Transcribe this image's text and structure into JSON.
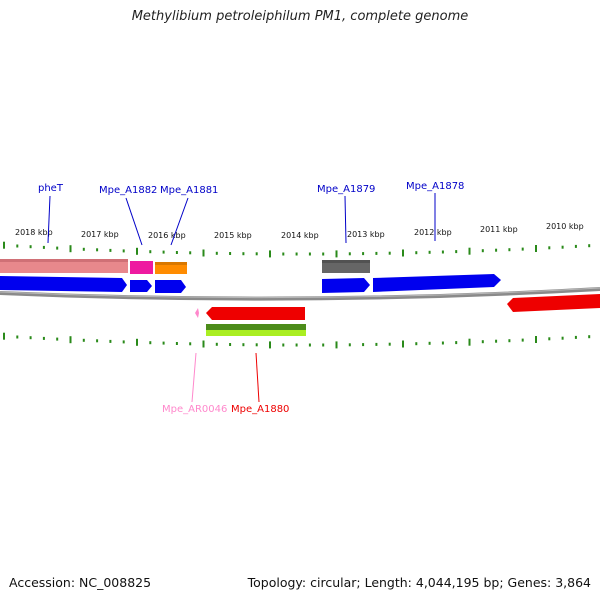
{
  "genome": {
    "title": "Methylibium petroleiphilum PM1, complete genome",
    "accession": "Accession: NC_008825",
    "summary": "Topology: circular; Length: 4,044,195 bp; Genes: 3,864"
  },
  "colors": {
    "backbone": "#888888",
    "tick": "#2a8a1a",
    "cds_forward": "#0000ee",
    "label_forward": "#0000c8",
    "pseudo_pink": "#e8888c",
    "magenta": "#ee1aa0",
    "orange": "#ff8c00",
    "grey_feature": "#666666",
    "red": "#ee0000",
    "rRNA_pink": "#ff88cc",
    "green_dark": "#4c8c1a",
    "green_light": "#aaee22"
  },
  "scale": {
    "ticks_kbp": [
      "2018 kbp",
      "2017 kbp",
      "2016 kbp",
      "2015 kbp",
      "2014 kbp",
      "2013 kbp",
      "2012 kbp",
      "2011 kbp",
      "2010 kbp"
    ]
  },
  "genes": {
    "top": [
      "pheT",
      "Mpe_A1882",
      "Mpe_A1881",
      "Mpe_A1879",
      "Mpe_A1878"
    ],
    "bottom": [
      "Mpe_AR0046",
      "Mpe_A1880"
    ]
  }
}
